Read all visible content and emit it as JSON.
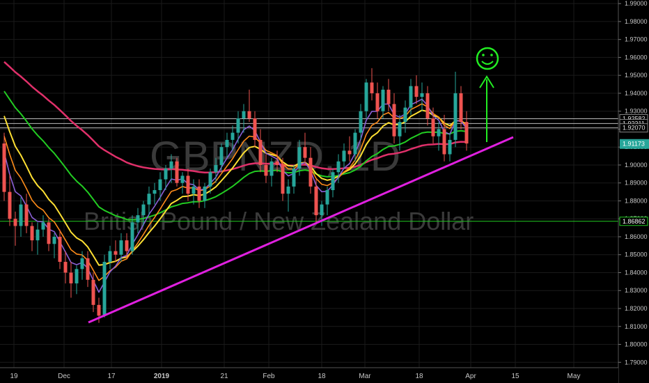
{
  "chart_data": {
    "type": "candlestick",
    "title": "GBPNZD, 1D",
    "subtitle": "British Pound / New Zealand Dollar",
    "colors": {
      "background": "#000000",
      "up_candle": "#26a69a",
      "down_candle": "#ef5350",
      "ma_fast": "#8a5fd6",
      "ma_mid": "#ff8c1a",
      "ma_slow": "#ffe033",
      "ma_green": "#22cc22",
      "ma_red": "#e0306a",
      "trendline": "#e020e0",
      "support_line": "#22cc22",
      "arrow": "#22ee22",
      "price_badge": "#26a69a"
    },
    "y_axis": {
      "min": 1.787,
      "max": 1.992,
      "ticks": [
        "1.99000",
        "1.98000",
        "1.97000",
        "1.96000",
        "1.95000",
        "1.94000",
        "1.93000",
        "1.92000",
        "1.91000",
        "1.90000",
        "1.89000",
        "1.88000",
        "1.87000",
        "1.86000",
        "1.85000",
        "1.84000",
        "1.83000",
        "1.82000",
        "1.81000",
        "1.80000",
        "1.79000"
      ]
    },
    "x_axis": {
      "labels": [
        {
          "text": "19",
          "bold": false
        },
        {
          "text": "Dec",
          "bold": false
        },
        {
          "text": "17",
          "bold": false
        },
        {
          "text": "2019",
          "bold": true
        },
        {
          "text": "21",
          "bold": false
        },
        {
          "text": "Feb",
          "bold": false
        },
        {
          "text": "18",
          "bold": false
        },
        {
          "text": "Mar",
          "bold": false
        },
        {
          "text": "18",
          "bold": false
        },
        {
          "text": "Apr",
          "bold": false
        },
        {
          "text": "15",
          "bold": false
        },
        {
          "text": "May",
          "bold": false
        }
      ]
    },
    "horizontal_levels": [
      {
        "label": "1.92582",
        "value": 1.92582
      },
      {
        "label": "1.92311",
        "value": 1.92311
      },
      {
        "label": "1.92070",
        "value": 1.9207
      },
      {
        "label": "1.86862",
        "value": 1.86862
      }
    ],
    "last_price": {
      "label": "1.91173",
      "value": 1.91173
    },
    "series_candles": [
      [
        1.912,
        1.918,
        1.88,
        1.885
      ],
      [
        1.885,
        1.895,
        1.866,
        1.87
      ],
      [
        1.87,
        1.874,
        1.855,
        1.866
      ],
      [
        1.866,
        1.882,
        1.86,
        1.878
      ],
      [
        1.878,
        1.884,
        1.862,
        1.866
      ],
      [
        1.866,
        1.868,
        1.852,
        1.858
      ],
      [
        1.858,
        1.868,
        1.85,
        1.864
      ],
      [
        1.864,
        1.872,
        1.86,
        1.868
      ],
      [
        1.868,
        1.87,
        1.852,
        1.856
      ],
      [
        1.856,
        1.862,
        1.848,
        1.86
      ],
      [
        1.86,
        1.864,
        1.842,
        1.846
      ],
      [
        1.846,
        1.852,
        1.834,
        1.84
      ],
      [
        1.84,
        1.846,
        1.826,
        1.834
      ],
      [
        1.834,
        1.844,
        1.828,
        1.842
      ],
      [
        1.842,
        1.852,
        1.836,
        1.848
      ],
      [
        1.848,
        1.852,
        1.832,
        1.836
      ],
      [
        1.836,
        1.84,
        1.818,
        1.822
      ],
      [
        1.822,
        1.826,
        1.812,
        1.816
      ],
      [
        1.816,
        1.85,
        1.815,
        1.846
      ],
      [
        1.846,
        1.855,
        1.842,
        1.852
      ],
      [
        1.852,
        1.858,
        1.846,
        1.85
      ],
      [
        1.85,
        1.862,
        1.846,
        1.858
      ],
      [
        1.858,
        1.862,
        1.848,
        1.852
      ],
      [
        1.852,
        1.872,
        1.85,
        1.868
      ],
      [
        1.868,
        1.876,
        1.862,
        1.872
      ],
      [
        1.872,
        1.88,
        1.866,
        1.878
      ],
      [
        1.878,
        1.888,
        1.872,
        1.884
      ],
      [
        1.884,
        1.89,
        1.878,
        1.886
      ],
      [
        1.886,
        1.896,
        1.88,
        1.892
      ],
      [
        1.892,
        1.9,
        1.886,
        1.898
      ],
      [
        1.898,
        1.906,
        1.89,
        1.902
      ],
      [
        1.902,
        1.904,
        1.888,
        1.89
      ],
      [
        1.89,
        1.896,
        1.884,
        1.894
      ],
      [
        1.894,
        1.898,
        1.88,
        1.884
      ],
      [
        1.884,
        1.892,
        1.878,
        1.888
      ],
      [
        1.888,
        1.892,
        1.876,
        1.88
      ],
      [
        1.88,
        1.89,
        1.876,
        1.888
      ],
      [
        1.888,
        1.898,
        1.884,
        1.896
      ],
      [
        1.896,
        1.904,
        1.89,
        1.9
      ],
      [
        1.9,
        1.912,
        1.896,
        1.91
      ],
      [
        1.91,
        1.918,
        1.904,
        1.914
      ],
      [
        1.914,
        1.922,
        1.908,
        1.918
      ],
      [
        1.918,
        1.93,
        1.912,
        1.926
      ],
      [
        1.926,
        1.934,
        1.918,
        1.93
      ],
      [
        1.93,
        1.942,
        1.924,
        1.926
      ],
      [
        1.926,
        1.93,
        1.91,
        1.914
      ],
      [
        1.914,
        1.92,
        1.896,
        1.9
      ],
      [
        1.9,
        1.906,
        1.89,
        1.894
      ],
      [
        1.894,
        1.904,
        1.888,
        1.902
      ],
      [
        1.902,
        1.908,
        1.896,
        1.9
      ],
      [
        1.9,
        1.904,
        1.88,
        1.884
      ],
      [
        1.884,
        1.892,
        1.874,
        1.888
      ],
      [
        1.888,
        1.9,
        1.884,
        1.898
      ],
      [
        1.898,
        1.914,
        1.894,
        1.91
      ],
      [
        1.91,
        1.918,
        1.9,
        1.904
      ],
      [
        1.904,
        1.91,
        1.884,
        1.888
      ],
      [
        1.888,
        1.892,
        1.868,
        1.872
      ],
      [
        1.872,
        1.88,
        1.866,
        1.878
      ],
      [
        1.878,
        1.888,
        1.872,
        1.886
      ],
      [
        1.886,
        1.898,
        1.882,
        1.896
      ],
      [
        1.896,
        1.906,
        1.89,
        1.902
      ],
      [
        1.902,
        1.912,
        1.898,
        1.908
      ],
      [
        1.908,
        1.916,
        1.902,
        1.906
      ],
      [
        1.906,
        1.92,
        1.902,
        1.918
      ],
      [
        1.918,
        1.934,
        1.914,
        1.93
      ],
      [
        1.93,
        1.948,
        1.926,
        1.946
      ],
      [
        1.946,
        1.954,
        1.936,
        1.94
      ],
      [
        1.94,
        1.946,
        1.926,
        1.93
      ],
      [
        1.93,
        1.944,
        1.926,
        1.942
      ],
      [
        1.942,
        1.948,
        1.93,
        1.934
      ],
      [
        1.934,
        1.94,
        1.912,
        1.916
      ],
      [
        1.916,
        1.928,
        1.908,
        1.924
      ],
      [
        1.924,
        1.936,
        1.918,
        1.932
      ],
      [
        1.932,
        1.948,
        1.928,
        1.944
      ],
      [
        1.944,
        1.95,
        1.934,
        1.938
      ],
      [
        1.938,
        1.946,
        1.93,
        1.94
      ],
      [
        1.94,
        1.944,
        1.922,
        1.926
      ],
      [
        1.926,
        1.932,
        1.912,
        1.916
      ],
      [
        1.916,
        1.924,
        1.908,
        1.92
      ],
      [
        1.92,
        1.928,
        1.902,
        1.906
      ],
      [
        1.906,
        1.918,
        1.902,
        1.914
      ],
      [
        1.914,
        1.952,
        1.91,
        1.94
      ],
      [
        1.94,
        1.944,
        1.92,
        1.924
      ],
      [
        1.924,
        1.93,
        1.908,
        1.912
      ]
    ]
  },
  "annotations": {
    "smiley": "☺",
    "arrow": "up-arrow"
  }
}
